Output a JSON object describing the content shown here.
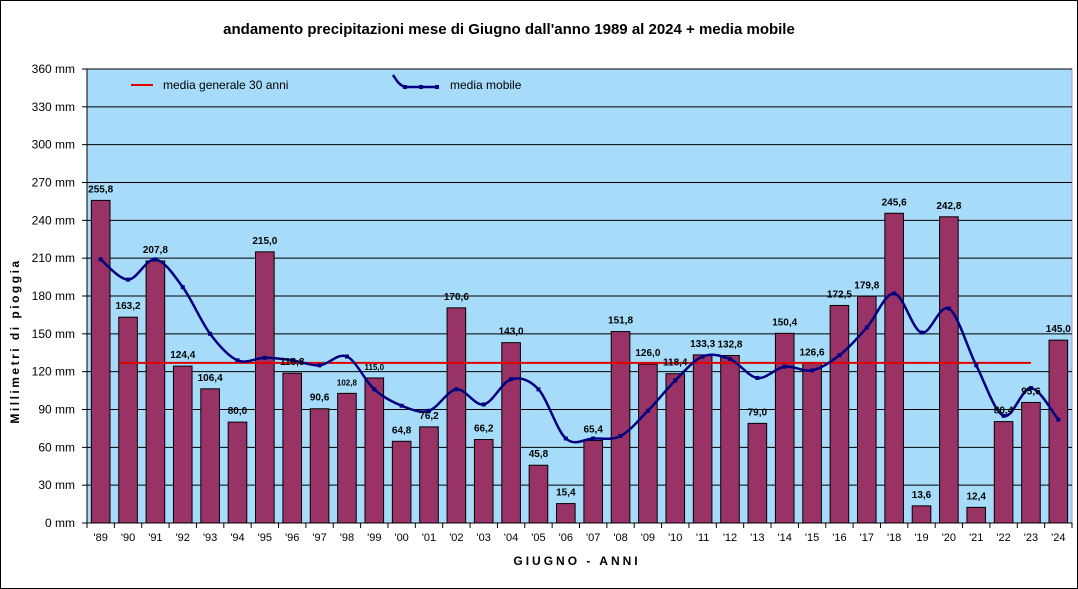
{
  "chart_data": {
    "type": "bar",
    "title": "andamento precipitazioni mese di Giugno dall'anno 1989 al 2024 + media mobile",
    "xlabel": "GIUGNO - ANNI",
    "ylabel": "Millimetri di pioggia",
    "ylim": [
      0,
      360
    ],
    "y_unit": "mm",
    "y_ticks": [
      0,
      30,
      60,
      90,
      120,
      150,
      180,
      210,
      240,
      270,
      300,
      330,
      360
    ],
    "grid": true,
    "legend_position": "top-left",
    "categories": [
      "'89",
      "'90",
      "'91",
      "'92",
      "'93",
      "'94",
      "'95",
      "'96",
      "'97",
      "'98",
      "'99",
      "'00",
      "'01",
      "'02",
      "'03",
      "'04",
      "'05",
      "'06",
      "'07",
      "'08",
      "'09",
      "'10",
      "'11",
      "'12",
      "'13",
      "'14",
      "'15",
      "'16",
      "'17",
      "'18",
      "'19",
      "'20",
      "'21",
      "'22",
      "'23",
      "'24"
    ],
    "series": [
      {
        "kind": "bar",
        "color": "#993366",
        "values": [
          255.8,
          163.2,
          207.8,
          124.4,
          106.4,
          80.0,
          215.0,
          118.8,
          90.6,
          102.8,
          115.0,
          64.8,
          76.2,
          170.6,
          66.2,
          143.0,
          45.8,
          15.4,
          65.4,
          151.8,
          126.0,
          118.4,
          133.3,
          132.8,
          79.0,
          150.4,
          126.6,
          172.5,
          179.8,
          245.6,
          13.6,
          242.8,
          12.4,
          80.4,
          95.6,
          145.0
        ],
        "labels": [
          "255,8",
          "163,2",
          "207,8",
          "124,4",
          "106,4",
          "80,0",
          "215,0",
          "118,8",
          "90,6",
          "102,8",
          "115,0",
          "64,8",
          "76,2",
          "170,6",
          "66,2",
          "143,0",
          "45,8",
          "15,4",
          "65,4",
          "151,8",
          "126,0",
          "118,4",
          "133,3",
          "132,8",
          "79,0",
          "150,4",
          "126,6",
          "172,5",
          "179,8",
          "245,6",
          "13,6",
          "242,8",
          "12,4",
          "80,4",
          "95,6",
          "145,0"
        ]
      },
      {
        "kind": "line",
        "name": "media mobile",
        "color": "#000080",
        "values": [
          209,
          193,
          209,
          187,
          150,
          129,
          131,
          129,
          125,
          132,
          106,
          93,
          89,
          106,
          94,
          114,
          106,
          67,
          67,
          69,
          89,
          113,
          132,
          130,
          115,
          124,
          121,
          133,
          155,
          182,
          151,
          170,
          125,
          85,
          107,
          82
        ]
      },
      {
        "kind": "hline",
        "name": "media generale 30 anni",
        "color": "#e00000",
        "value": 127,
        "from": "'90",
        "to": "'23"
      }
    ]
  }
}
